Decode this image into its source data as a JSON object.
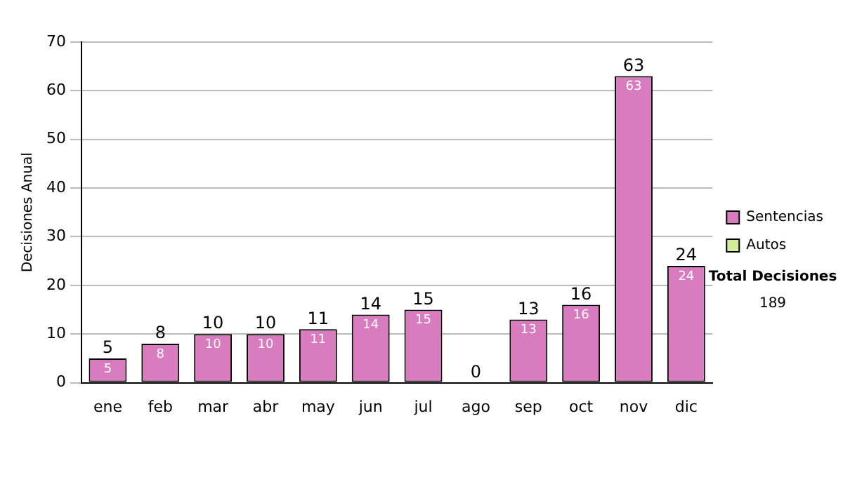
{
  "chart_data": {
    "type": "bar",
    "ylabel": "Decisiones Anual",
    "categories": [
      "ene",
      "feb",
      "mar",
      "abr",
      "may",
      "jun",
      "jul",
      "ago",
      "sep",
      "oct",
      "nov",
      "dic"
    ],
    "series": [
      {
        "name": "Sentencias",
        "color": "#d97bbf",
        "values": [
          5,
          8,
          10,
          10,
          11,
          14,
          15,
          0,
          13,
          16,
          63,
          24
        ],
        "value_labels": [
          "5",
          "8",
          "10",
          "10",
          "11",
          "14",
          "15",
          null,
          "13",
          "16",
          "63",
          "24"
        ]
      },
      {
        "name": "Autos",
        "color": "#d4eb9c",
        "values": [
          0,
          0,
          0,
          0,
          0,
          0,
          0,
          0,
          0,
          0,
          0,
          0
        ]
      }
    ],
    "stacked": true,
    "totals": [
      "5",
      "8",
      "10",
      "10",
      "11",
      "14",
      "15",
      "0",
      "13",
      "16",
      "63",
      "24"
    ],
    "ylim": [
      0,
      70
    ],
    "yticks": [
      0,
      10,
      20,
      30,
      40,
      50,
      60,
      70
    ],
    "grid": "y",
    "legend": "right",
    "annotations": [
      "Total Decisiones",
      "189"
    ]
  }
}
